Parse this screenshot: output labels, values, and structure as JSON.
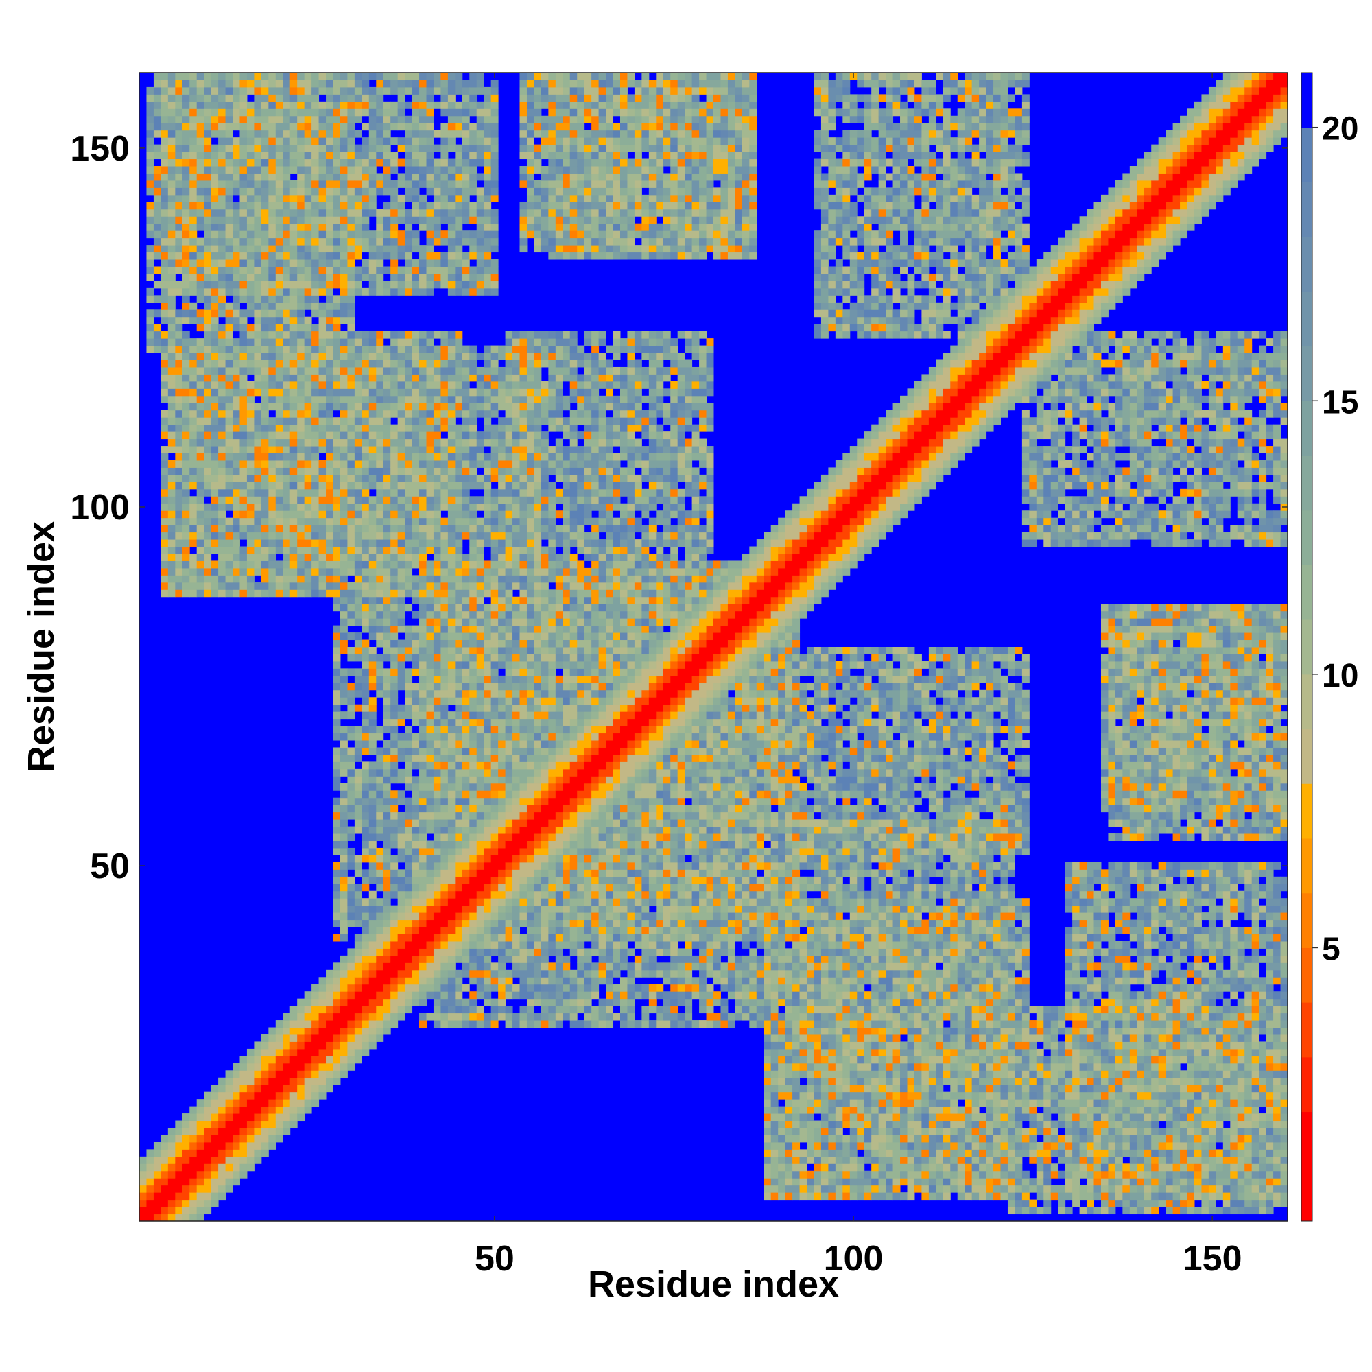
{
  "chart_data": {
    "type": "heatmap",
    "title": "",
    "xlabel": "Residue index",
    "ylabel": "Residue index",
    "n_residues": 160,
    "x_range": [
      1,
      160
    ],
    "y_range": [
      1,
      160
    ],
    "x_ticks": [
      50,
      100,
      150
    ],
    "y_ticks": [
      50,
      100,
      150
    ],
    "colorbar": {
      "ticks": [
        5,
        10,
        15,
        20
      ],
      "range": [
        0,
        21
      ],
      "levels": [
        {
          "max": 2,
          "color": "#ff0000"
        },
        {
          "max": 3,
          "color": "#ff2200"
        },
        {
          "max": 4,
          "color": "#ff4400"
        },
        {
          "max": 5,
          "color": "#ff6600"
        },
        {
          "max": 6,
          "color": "#ff8000"
        },
        {
          "max": 7,
          "color": "#ff9900"
        },
        {
          "max": 8,
          "color": "#ffb000"
        },
        {
          "max": 9,
          "color": "#c2b886"
        },
        {
          "max": 10,
          "color": "#b6ba8a"
        },
        {
          "max": 11,
          "color": "#a4b890"
        },
        {
          "max": 12,
          "color": "#97b494"
        },
        {
          "max": 13,
          "color": "#8cae98"
        },
        {
          "max": 14,
          "color": "#86a89c"
        },
        {
          "max": 15,
          "color": "#7ea2a0"
        },
        {
          "max": 16,
          "color": "#779aa6"
        },
        {
          "max": 17,
          "color": "#7094aa"
        },
        {
          "max": 18,
          "color": "#6a8eae"
        },
        {
          "max": 19,
          "color": "#6488b2"
        },
        {
          "max": 20,
          "color": "#5c82b6"
        },
        {
          "max": 21,
          "color": "#0000ff"
        }
      ]
    },
    "grid": false,
    "legend": "colorbar-right",
    "contact_regions": [
      {
        "a": [
          2,
          30
        ],
        "b": [
          122,
          160
        ],
        "orientation": "anti-parallel"
      },
      {
        "a": [
          4,
          45
        ],
        "b": [
          88,
          124
        ],
        "orientation": "parallel"
      },
      {
        "a": [
          28,
          92
        ],
        "b": [
          40,
          92
        ],
        "orientation": "compact-core"
      },
      {
        "a": [
          52,
          80
        ],
        "b": [
          84,
          124
        ],
        "orientation": "anti-parallel"
      },
      {
        "a": [
          54,
          86
        ],
        "b": [
          136,
          160
        ],
        "orientation": "anti-parallel"
      },
      {
        "a": [
          95,
          124
        ],
        "b": [
          124,
          160
        ],
        "orientation": "parallel"
      },
      {
        "a": [
          88,
          122
        ],
        "b": [
          4,
          56
        ],
        "orientation": "mirror-contacts"
      },
      {
        "a": [
          130,
          160
        ],
        "b": [
          4,
          50
        ],
        "orientation": "anti-parallel"
      },
      {
        "a": [
          135,
          160
        ],
        "b": [
          58,
          86
        ],
        "orientation": "anti-parallel"
      }
    ]
  }
}
